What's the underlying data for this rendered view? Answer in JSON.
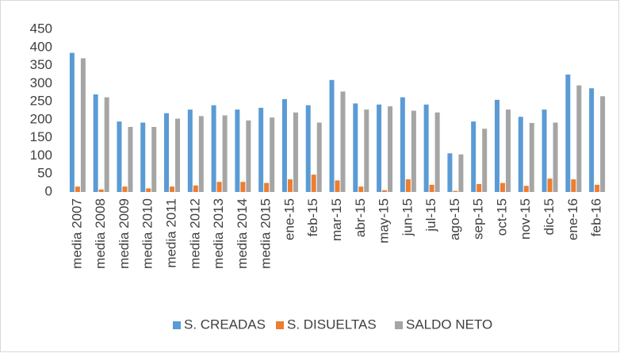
{
  "chart_data": {
    "type": "bar",
    "categories": [
      "media 2007",
      "media 2008",
      "media 2009",
      "media 2010",
      "media 2011",
      "media 2012",
      "media 2013",
      "media 2014",
      "media 2015",
      "ene-15",
      "feb-15",
      "mar-15",
      "abr-15",
      "may-15",
      "jun-15",
      "jul-15",
      "ago-15",
      "sep-15",
      "oct-15",
      "nov-15",
      "dic-15",
      "ene-16",
      "feb-16"
    ],
    "series": [
      {
        "name": "S. CREADAS",
        "color": "#5b9bd5",
        "values": [
          385,
          270,
          195,
          192,
          218,
          228,
          240,
          228,
          233,
          257,
          240,
          310,
          245,
          242,
          262,
          242,
          107,
          195,
          255,
          208,
          228,
          325,
          287
        ]
      },
      {
        "name": "S. DISUELTAS",
        "color": "#ed7d31",
        "values": [
          15,
          7,
          15,
          10,
          15,
          18,
          28,
          28,
          25,
          35,
          48,
          32,
          15,
          5,
          35,
          20,
          3,
          22,
          25,
          17,
          37,
          35,
          20
        ]
      },
      {
        "name": "SALDO NETO",
        "color": "#a5a5a5",
        "values": [
          370,
          262,
          180,
          180,
          203,
          210,
          212,
          198,
          206,
          220,
          192,
          278,
          228,
          237,
          225,
          220,
          104,
          175,
          228,
          191,
          192,
          295,
          265
        ]
      }
    ],
    "ylim": [
      0,
      450
    ],
    "yticks": [
      0,
      50,
      100,
      150,
      200,
      250,
      300,
      350,
      400,
      450
    ],
    "grid": false,
    "legend": "bottom"
  }
}
